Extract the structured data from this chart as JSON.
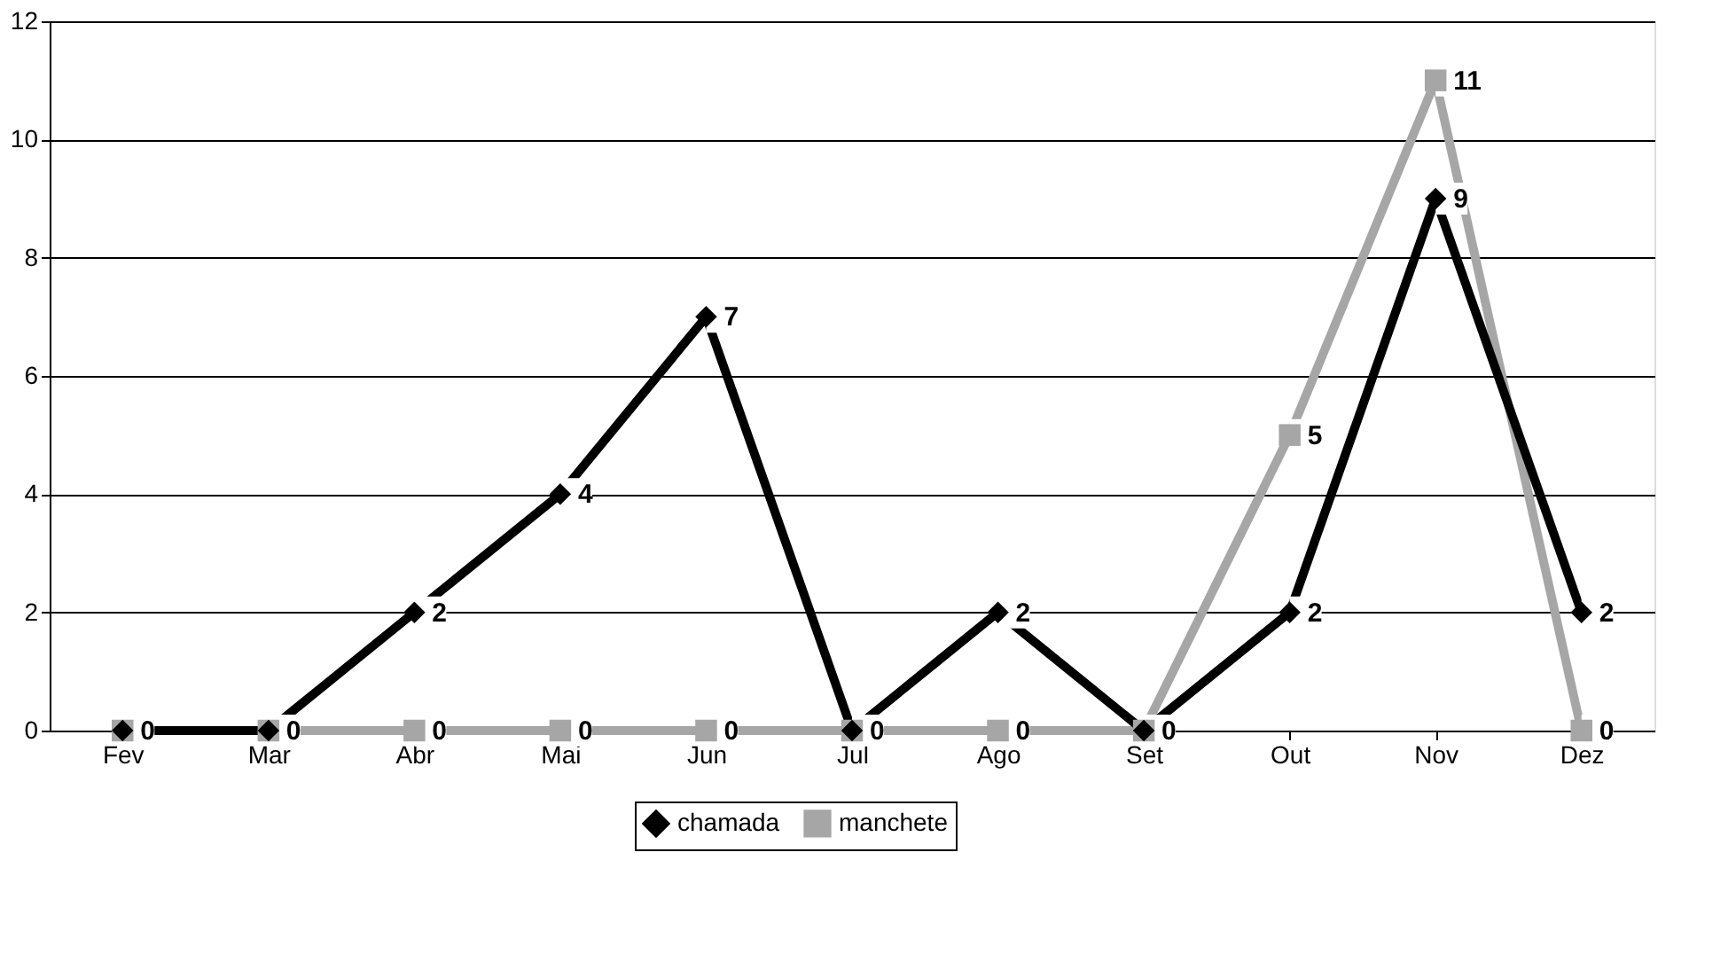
{
  "chart_data": {
    "type": "line",
    "categories": [
      "Fev",
      "Mar",
      "Abr",
      "Mai",
      "Jun",
      "Jul",
      "Ago",
      "Set",
      "Out",
      "Nov",
      "Dez"
    ],
    "series": [
      {
        "name": "chamada",
        "color": "#000000",
        "marker": "diamond",
        "values": [
          0,
          0,
          2,
          4,
          7,
          0,
          2,
          0,
          2,
          9,
          2
        ],
        "value_labels": [
          null,
          null,
          "2",
          "4",
          "7",
          null,
          "2",
          null,
          "2",
          "9",
          "2"
        ]
      },
      {
        "name": "manchete",
        "color": "#a6a6a6",
        "marker": "square",
        "values": [
          0,
          0,
          0,
          0,
          0,
          0,
          0,
          0,
          5,
          11,
          0
        ],
        "value_labels": [
          "0",
          "0",
          "0",
          "0",
          "0",
          "0",
          "0",
          "0",
          "5",
          "11",
          "0"
        ]
      }
    ],
    "ylim": [
      0,
      12
    ],
    "yticks": [
      0,
      2,
      4,
      6,
      8,
      10,
      12
    ],
    "grid": "y",
    "legend": "bottom",
    "line_style": "solid",
    "data_labels": true
  }
}
